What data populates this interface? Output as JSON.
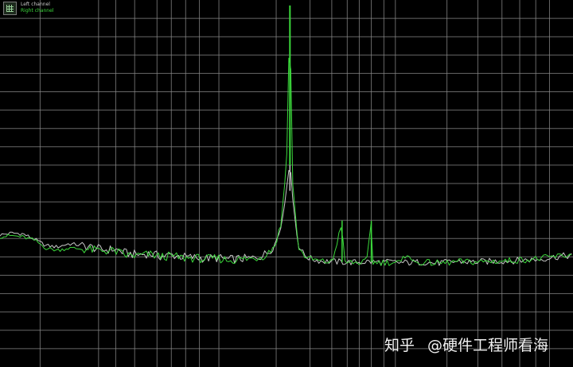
{
  "legend": {
    "items": [
      {
        "label": "Left channel",
        "color": "#c8c8c8"
      },
      {
        "label": "Right channel",
        "color": "#3bd83b"
      }
    ]
  },
  "watermark": {
    "brand": "知乎",
    "author": "@硬件工程师看海"
  },
  "colors": {
    "background": "#000000",
    "grid": "#8a8a8a",
    "left_channel": "#c8c8c8",
    "right_channel": "#3bd83b"
  },
  "chart_data": {
    "type": "line",
    "title": "",
    "xlabel": "",
    "ylabel": "",
    "xlim": [
      0,
      100
    ],
    "ylim": [
      0,
      100
    ],
    "grid": true,
    "legend_position": "top-left",
    "series": [
      {
        "name": "Left channel",
        "x": [
          0,
          2,
          4,
          6,
          8,
          10,
          12,
          14,
          16,
          18,
          20,
          22,
          24,
          26,
          28,
          30,
          32,
          34,
          36,
          38,
          40,
          42,
          44,
          46,
          47,
          48,
          49,
          50,
          50.6,
          51,
          52,
          53,
          54,
          56,
          58,
          60,
          62,
          64,
          66,
          68,
          70,
          72,
          74,
          76,
          78,
          80,
          82,
          84,
          86,
          88,
          90,
          92,
          94,
          96,
          98,
          100
        ],
        "values": [
          36,
          36.5,
          36.3,
          34.8,
          33.1,
          32.7,
          33.6,
          33.2,
          32.6,
          31.9,
          32.1,
          31.0,
          30.6,
          30.9,
          30.2,
          30.5,
          30.0,
          29.8,
          29.6,
          29.7,
          29.3,
          29.5,
          29.6,
          30.5,
          31.6,
          33.5,
          38.0,
          48.0,
          57.0,
          47.0,
          33.5,
          30.7,
          29.6,
          28.9,
          28.7,
          28.6,
          28.5,
          28.7,
          28.6,
          28.6,
          28.4,
          28.5,
          28.6,
          28.3,
          28.5,
          28.8,
          28.6,
          28.7,
          28.8,
          28.9,
          29.0,
          29.2,
          29.3,
          29.8,
          30.2,
          30.4
        ]
      },
      {
        "name": "Right channel",
        "x": [
          0,
          2,
          4,
          6,
          8,
          10,
          12,
          14,
          16,
          18,
          20,
          22,
          24,
          26,
          28,
          30,
          32,
          34,
          36,
          38,
          40,
          42,
          44,
          46,
          47,
          48,
          49,
          50,
          50.6,
          51,
          52,
          53,
          54,
          56,
          58,
          59.7,
          60,
          62,
          64,
          64.8,
          65,
          66,
          68,
          70,
          71.2,
          72,
          74,
          76,
          78,
          80,
          82,
          84,
          86,
          88,
          90,
          92,
          94,
          96,
          98,
          100
        ],
        "values": [
          35.5,
          35.8,
          35.4,
          34.6,
          32.4,
          31.8,
          32.4,
          32.2,
          31.9,
          31.7,
          31.6,
          30.4,
          30.3,
          30.7,
          30.1,
          30.2,
          29.7,
          29.7,
          29.4,
          29.6,
          29.1,
          29.4,
          29.5,
          30.3,
          31.5,
          33.3,
          38.5,
          55.0,
          98.5,
          52.0,
          33.0,
          30.5,
          29.5,
          28.8,
          28.6,
          39.9,
          28.5,
          28.4,
          28.6,
          39.8,
          28.5,
          28.5,
          28.5,
          28.4,
          31.5,
          28.4,
          28.5,
          28.3,
          28.4,
          28.7,
          28.6,
          28.7,
          28.8,
          28.9,
          29.1,
          29.3,
          29.5,
          29.9,
          30.3,
          30.5
        ]
      }
    ]
  }
}
